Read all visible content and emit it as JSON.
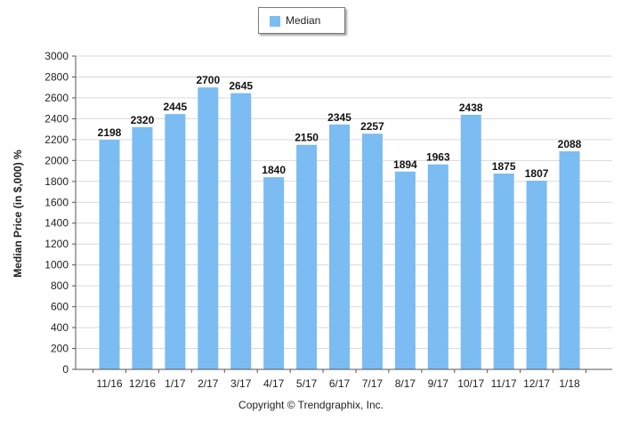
{
  "chart_data": {
    "type": "bar",
    "categories": [
      "11/16",
      "12/16",
      "1/17",
      "2/17",
      "3/17",
      "4/17",
      "5/17",
      "6/17",
      "7/17",
      "8/17",
      "9/17",
      "10/17",
      "11/17",
      "12/17",
      "1/18"
    ],
    "series": [
      {
        "name": "Median",
        "values": [
          2198,
          2320,
          2445,
          2700,
          2645,
          1840,
          2150,
          2345,
          2257,
          1894,
          1963,
          2438,
          1875,
          1807,
          2088
        ]
      }
    ],
    "data_labels": [
      "2198",
      "2320",
      "2445",
      "2700",
      "2645",
      "1840",
      "2150",
      "2345",
      "2257",
      "1894",
      "1963",
      "2438",
      "1875",
      "1807",
      "2088"
    ],
    "ylabel": "Median Price (in $,000) %",
    "xlabel": "",
    "ylim": [
      0,
      3000
    ],
    "yticks": [
      0,
      200,
      400,
      600,
      800,
      1000,
      1200,
      1400,
      1600,
      1800,
      2000,
      2200,
      2400,
      2600,
      2800,
      3000
    ],
    "ytick_labels": [
      "0",
      "200",
      "400",
      "600",
      "800",
      "1000",
      "1200",
      "1400",
      "1600",
      "1800",
      "2000",
      "2200",
      "2400",
      "2600",
      "2800",
      "3000"
    ],
    "grid": true,
    "legend_position": "top-center",
    "bar_color": "#7bbcf2",
    "grid_color": "#d9d9d9"
  },
  "legend": {
    "label": "Median"
  },
  "footer": {
    "copyright": "Copyright © Trendgraphix, Inc."
  }
}
